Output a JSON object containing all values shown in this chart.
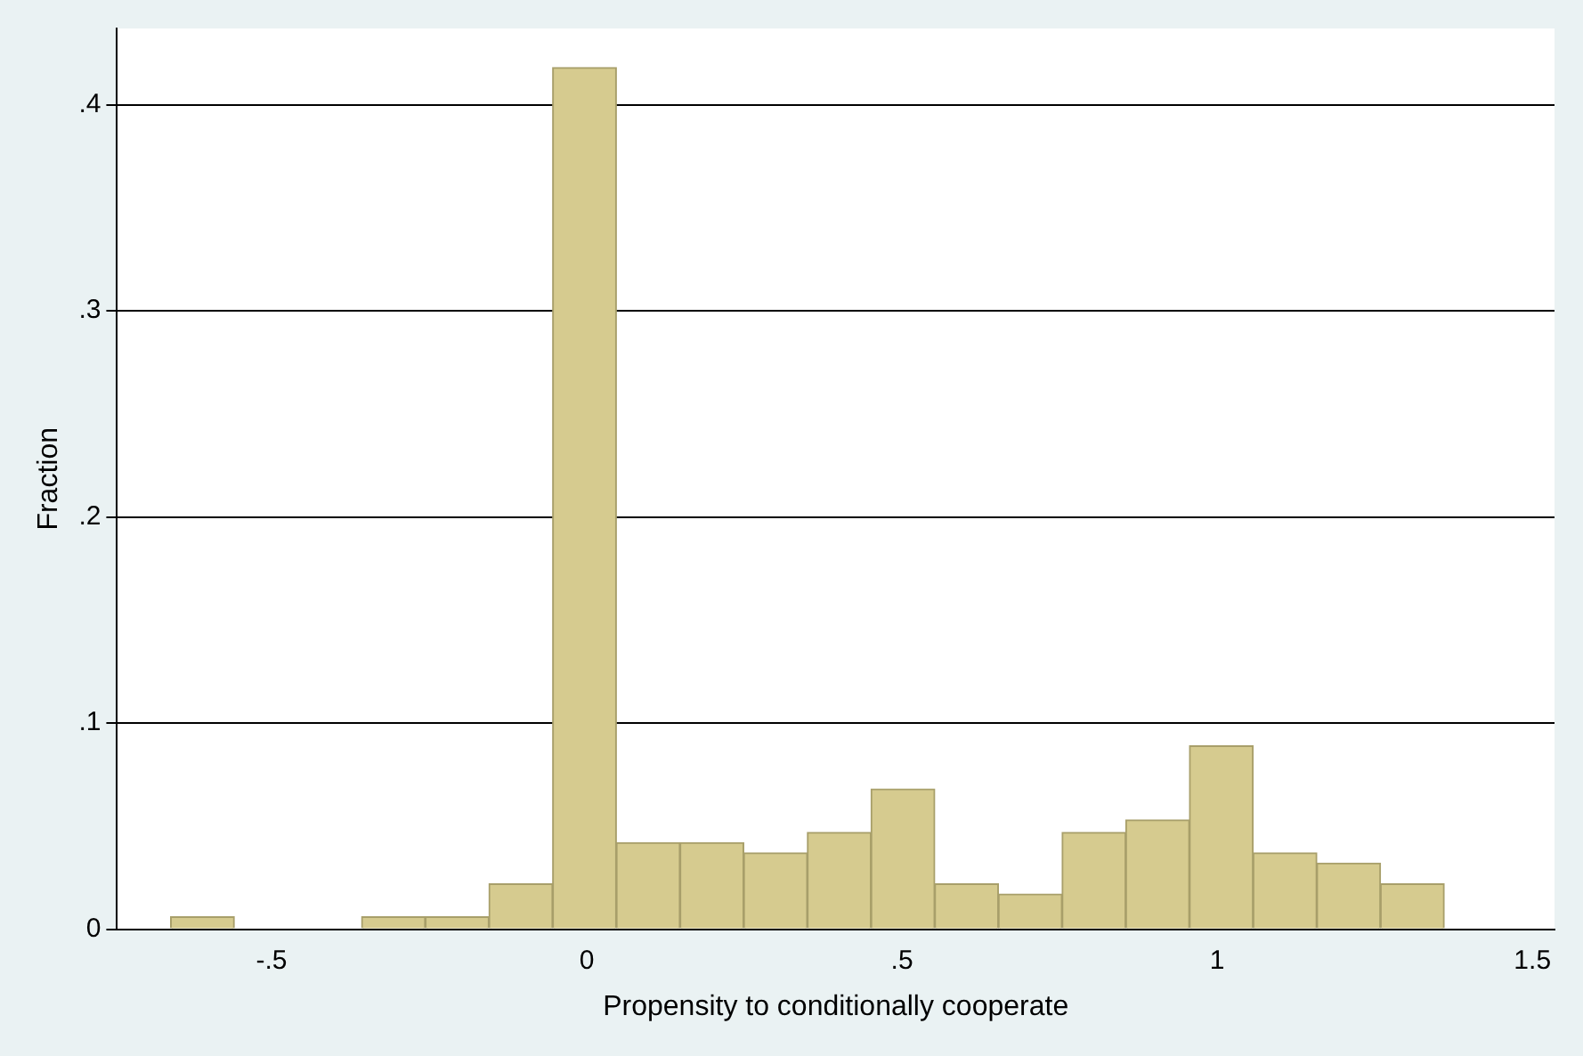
{
  "chart_data": {
    "type": "histogram",
    "xlabel": "Propensity to conditionally cooperate",
    "ylabel": "Fraction",
    "bins": [
      -0.66,
      -0.559,
      -0.458,
      -0.357,
      -0.256,
      -0.155,
      -0.054,
      0.047,
      0.148,
      0.249,
      0.35,
      0.451,
      0.552,
      0.653,
      0.754,
      0.855,
      0.956,
      1.057,
      1.158,
      1.259,
      1.36
    ],
    "values": [
      0.006,
      0,
      0,
      0.006,
      0.006,
      0.022,
      0.418,
      0.042,
      0.042,
      0.037,
      0.047,
      0.068,
      0.022,
      0.017,
      0.047,
      0.053,
      0.089,
      0.037,
      0.032,
      0.022
    ],
    "color": "#d6cb8f",
    "xlim": [
      -0.745,
      1.535
    ],
    "xticks": [
      {
        "value": -0.5,
        "label": "-.5"
      },
      0,
      {
        "value": 0.5,
        "label": ".5"
      },
      1,
      1.5
    ],
    "ylim": [
      0,
      0.437
    ],
    "yticks": [
      0,
      {
        "value": 0.1,
        "label": ".1"
      },
      {
        "value": 0.2,
        "label": ".2"
      },
      {
        "value": 0.3,
        "label": ".3"
      },
      {
        "value": 0.4,
        "label": ".4"
      }
    ],
    "grid": "y",
    "legend": false
  }
}
